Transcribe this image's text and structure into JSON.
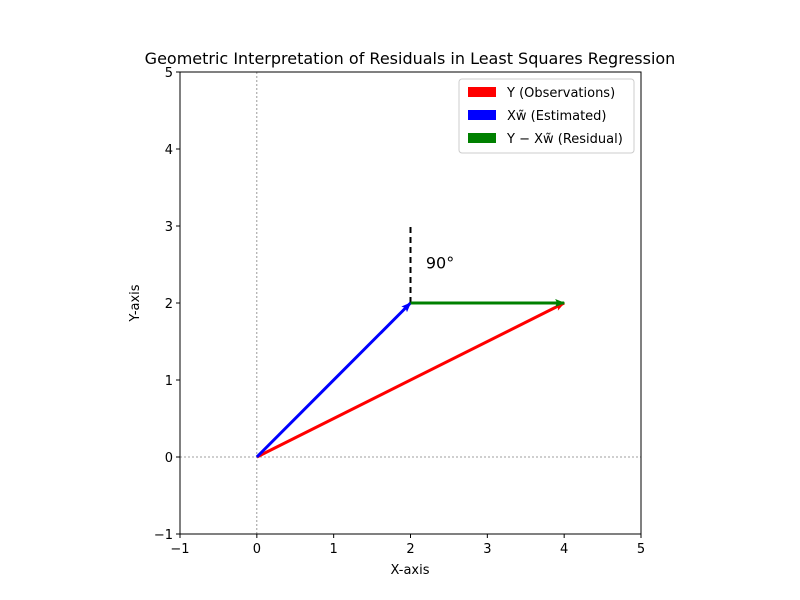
{
  "chart_data": {
    "type": "vector",
    "title": "Geometric Interpretation of Residuals in Least Squares Regression",
    "xlabel": "X-axis",
    "ylabel": "Y-axis",
    "xlim": [
      -1,
      5
    ],
    "ylim": [
      -1,
      5
    ],
    "xticks": [
      "−1",
      "0",
      "1",
      "2",
      "3",
      "4",
      "5"
    ],
    "yticks": [
      "−1",
      "0",
      "1",
      "2",
      "3",
      "4",
      "5"
    ],
    "grid": false,
    "reference_lines": [
      {
        "orientation": "horizontal",
        "value": 0,
        "style": "dotted",
        "color": "#808080"
      },
      {
        "orientation": "vertical",
        "value": 0,
        "style": "dotted",
        "color": "#808080"
      }
    ],
    "vectors": [
      {
        "name": "Y (Observations)",
        "color": "#ff0000",
        "from": [
          0,
          0
        ],
        "to": [
          4,
          2
        ]
      },
      {
        "name": "Xw̃ (Estimated)",
        "color": "#0000ff",
        "from": [
          0,
          0
        ],
        "to": [
          2,
          2
        ]
      },
      {
        "name": "Y − Xw̃ (Residual)",
        "color": "#008000",
        "from": [
          2,
          2
        ],
        "to": [
          4,
          2
        ]
      }
    ],
    "right_angle_marker": {
      "from": [
        2,
        2
      ],
      "to": [
        2,
        3
      ],
      "style": "dashed",
      "color": "#000000"
    },
    "annotations": [
      {
        "text": "90°",
        "x": 2.2,
        "y": 2.55
      }
    ],
    "legend": {
      "position": "upper-right",
      "entries": [
        {
          "label": "Y (Observations)",
          "color": "#ff0000"
        },
        {
          "label": "Xw̃ (Estimated)",
          "color": "#0000ff"
        },
        {
          "label": "Y − Xw̃ (Residual)",
          "color": "#008000"
        }
      ]
    }
  }
}
